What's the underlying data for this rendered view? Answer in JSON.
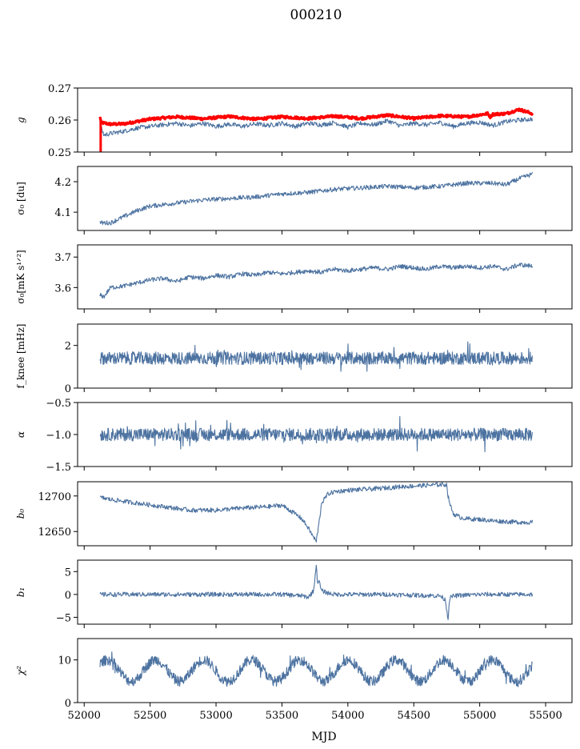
{
  "figure": {
    "suptitle": "000210"
  },
  "chart_data": [
    {
      "type": "line",
      "panel": "g",
      "ylabel_text": "g",
      "ylabel_italic": true,
      "ylim": [
        0.25,
        0.27
      ],
      "yticks": [
        0.25,
        0.26,
        0.27
      ],
      "ytick_labels": [
        "0.25",
        "0.26",
        "0.27"
      ],
      "series": [
        {
          "color": "#ff0000",
          "stroke": "thick",
          "x": [
            52120,
            52130,
            52200,
            52300,
            52500,
            52700,
            52900,
            53100,
            53300,
            53500,
            53700,
            53900,
            54100,
            54300,
            54500,
            54700,
            54900,
            55060,
            55080,
            55100,
            55200,
            55300,
            55400
          ],
          "y": [
            0.2609,
            0.2592,
            0.2587,
            0.2588,
            0.2603,
            0.261,
            0.2604,
            0.2611,
            0.2603,
            0.261,
            0.2605,
            0.2612,
            0.2605,
            0.2615,
            0.2605,
            0.2613,
            0.261,
            0.262,
            0.261,
            0.2618,
            0.262,
            0.2633,
            0.262
          ]
        },
        {
          "color": "#4c72a0",
          "stroke": "thin",
          "x": [
            52120,
            52150,
            52200,
            52300,
            52400,
            52500,
            52600,
            52700,
            52800,
            52900,
            53000,
            53100,
            53200,
            53300,
            53400,
            53500,
            53600,
            53700,
            53800,
            53900,
            54000,
            54100,
            54200,
            54300,
            54400,
            54500,
            54600,
            54700,
            54800,
            54900,
            55000,
            55100,
            55200,
            55300,
            55400
          ],
          "y": [
            0.2585,
            0.2553,
            0.2558,
            0.2565,
            0.2575,
            0.258,
            0.2585,
            0.259,
            0.2582,
            0.259,
            0.258,
            0.2587,
            0.258,
            0.2588,
            0.2583,
            0.259,
            0.258,
            0.259,
            0.2585,
            0.2592,
            0.2578,
            0.259,
            0.2585,
            0.2598,
            0.2582,
            0.259,
            0.2585,
            0.2592,
            0.258,
            0.259,
            0.2593,
            0.2583,
            0.2595,
            0.26,
            0.2603
          ]
        }
      ]
    },
    {
      "type": "line",
      "panel": "sigma0_du",
      "ylabel_text": "σ₀ [du]",
      "ylabel_italic": false,
      "ylim": [
        4.04,
        4.25
      ],
      "yticks": [
        4.1,
        4.2
      ],
      "ytick_labels": [
        "4.1",
        "4.2"
      ],
      "series": [
        {
          "color": "#4c72a0",
          "x": [
            52120,
            52200,
            52300,
            52400,
            52500,
            52700,
            52900,
            53100,
            53300,
            53500,
            53700,
            53900,
            54100,
            54300,
            54500,
            54700,
            54900,
            55100,
            55200,
            55300,
            55400
          ],
          "y": [
            4.065,
            4.065,
            4.085,
            4.105,
            4.12,
            4.13,
            4.14,
            4.145,
            4.15,
            4.16,
            4.165,
            4.175,
            4.18,
            4.185,
            4.18,
            4.185,
            4.195,
            4.195,
            4.19,
            4.21,
            4.225
          ]
        }
      ]
    },
    {
      "type": "line",
      "panel": "sigma0_mK",
      "ylabel_text": "σ₀[mK s¹ᐟ²]",
      "ylabel_italic": false,
      "ylim": [
        3.53,
        3.74
      ],
      "yticks": [
        3.6,
        3.7
      ],
      "ytick_labels": [
        "3.6",
        "3.7"
      ],
      "series": [
        {
          "color": "#4c72a0",
          "x": [
            52120,
            52150,
            52200,
            52300,
            52400,
            52500,
            52600,
            52700,
            52800,
            52900,
            53000,
            53100,
            53200,
            53300,
            53400,
            53500,
            53600,
            53700,
            53800,
            53900,
            54000,
            54100,
            54200,
            54300,
            54400,
            54500,
            54600,
            54700,
            54800,
            54900,
            55000,
            55100,
            55200,
            55300,
            55400
          ],
          "y": [
            3.575,
            3.57,
            3.6,
            3.605,
            3.615,
            3.625,
            3.63,
            3.62,
            3.635,
            3.63,
            3.64,
            3.635,
            3.645,
            3.64,
            3.65,
            3.645,
            3.65,
            3.655,
            3.65,
            3.66,
            3.655,
            3.66,
            3.665,
            3.66,
            3.67,
            3.665,
            3.66,
            3.67,
            3.665,
            3.67,
            3.665,
            3.67,
            3.66,
            3.675,
            3.67
          ]
        }
      ]
    },
    {
      "type": "line",
      "panel": "f_knee",
      "ylabel_text": "f_knee [mHz]",
      "ylabel_italic": false,
      "ylim": [
        0,
        3
      ],
      "yticks": [
        0,
        2
      ],
      "ytick_labels": [
        "0",
        "2"
      ],
      "series": [
        {
          "color": "#4c72a0",
          "noise": {
            "mean": 1.4,
            "amp": 0.3,
            "xmin": 52120,
            "xmax": 55400
          }
        }
      ]
    },
    {
      "type": "line",
      "panel": "alpha",
      "ylabel_text": "α",
      "ylabel_italic": true,
      "ylim": [
        -1.5,
        -0.5
      ],
      "yticks": [
        -1.5,
        -1.0,
        -0.5
      ],
      "ytick_labels": [
        "−1.5",
        "−1.0",
        "−0.5"
      ],
      "series": [
        {
          "color": "#4c72a0",
          "noise": {
            "mean": -1.0,
            "amp": 0.1,
            "xmin": 52120,
            "xmax": 55400
          }
        }
      ]
    },
    {
      "type": "line",
      "panel": "b0",
      "ylabel_text": "b₀",
      "ylabel_italic": true,
      "ylim": [
        12630,
        12720
      ],
      "yticks": [
        12650,
        12700
      ],
      "ytick_labels": [
        "12650",
        "12700"
      ],
      "series": [
        {
          "color": "#4c72a0",
          "x": [
            52120,
            52200,
            52400,
            52600,
            52800,
            53000,
            53200,
            53400,
            53500,
            53600,
            53650,
            53700,
            53720,
            53740,
            53760,
            53780,
            53800,
            53850,
            53900,
            54000,
            54200,
            54400,
            54600,
            54700,
            54750,
            54760,
            54780,
            54800,
            54850,
            54900,
            55000,
            55100,
            55200,
            55300,
            55400
          ],
          "y": [
            12698,
            12695,
            12690,
            12685,
            12680,
            12680,
            12683,
            12685,
            12687,
            12675,
            12668,
            12655,
            12648,
            12642,
            12636,
            12660,
            12690,
            12703,
            12706,
            12708,
            12710,
            12713,
            12715,
            12716,
            12716,
            12700,
            12685,
            12675,
            12670,
            12668,
            12667,
            12665,
            12664,
            12663,
            12663
          ]
        }
      ]
    },
    {
      "type": "line",
      "panel": "b1",
      "ylabel_text": "b₁",
      "ylabel_italic": true,
      "ylim": [
        -6.5,
        7.5
      ],
      "yticks": [
        -5,
        0,
        5
      ],
      "ytick_labels": [
        "−5",
        "0",
        "5"
      ],
      "series": [
        {
          "color": "#4c72a0",
          "x": [
            52120,
            52500,
            53000,
            53500,
            53650,
            53700,
            53740,
            53760,
            53770,
            53780,
            53800,
            53850,
            53900,
            54300,
            54700,
            54740,
            54760,
            54770,
            54790,
            54850,
            55000,
            55400
          ],
          "y": [
            0,
            0,
            0,
            0,
            -0.3,
            -0.6,
            0.8,
            6.5,
            2.5,
            3.0,
            0.8,
            0.3,
            0,
            0,
            -0.3,
            -1.2,
            -5.5,
            -1.0,
            -0.4,
            -0.2,
            0,
            0
          ]
        }
      ]
    },
    {
      "type": "line",
      "panel": "chi2",
      "ylabel_text": "χ²",
      "ylabel_italic": true,
      "ylim": [
        0,
        15
      ],
      "yticks": [
        0,
        10
      ],
      "ytick_labels": [
        "0",
        "10"
      ],
      "xlabel": "MJD",
      "xlim": [
        51950,
        55700
      ],
      "xticks": [
        52000,
        52500,
        53000,
        53500,
        54000,
        54500,
        55000,
        55500
      ],
      "xtick_labels": [
        "52000",
        "52500",
        "53000",
        "53500",
        "54000",
        "54500",
        "55000",
        "55500"
      ],
      "series": [
        {
          "color": "#4c72a0",
          "noise": {
            "mean": 7.5,
            "amp": 1.2,
            "seasonal_amp": 2.5,
            "period": 365,
            "xmin": 52120,
            "xmax": 55400
          }
        }
      ]
    }
  ]
}
